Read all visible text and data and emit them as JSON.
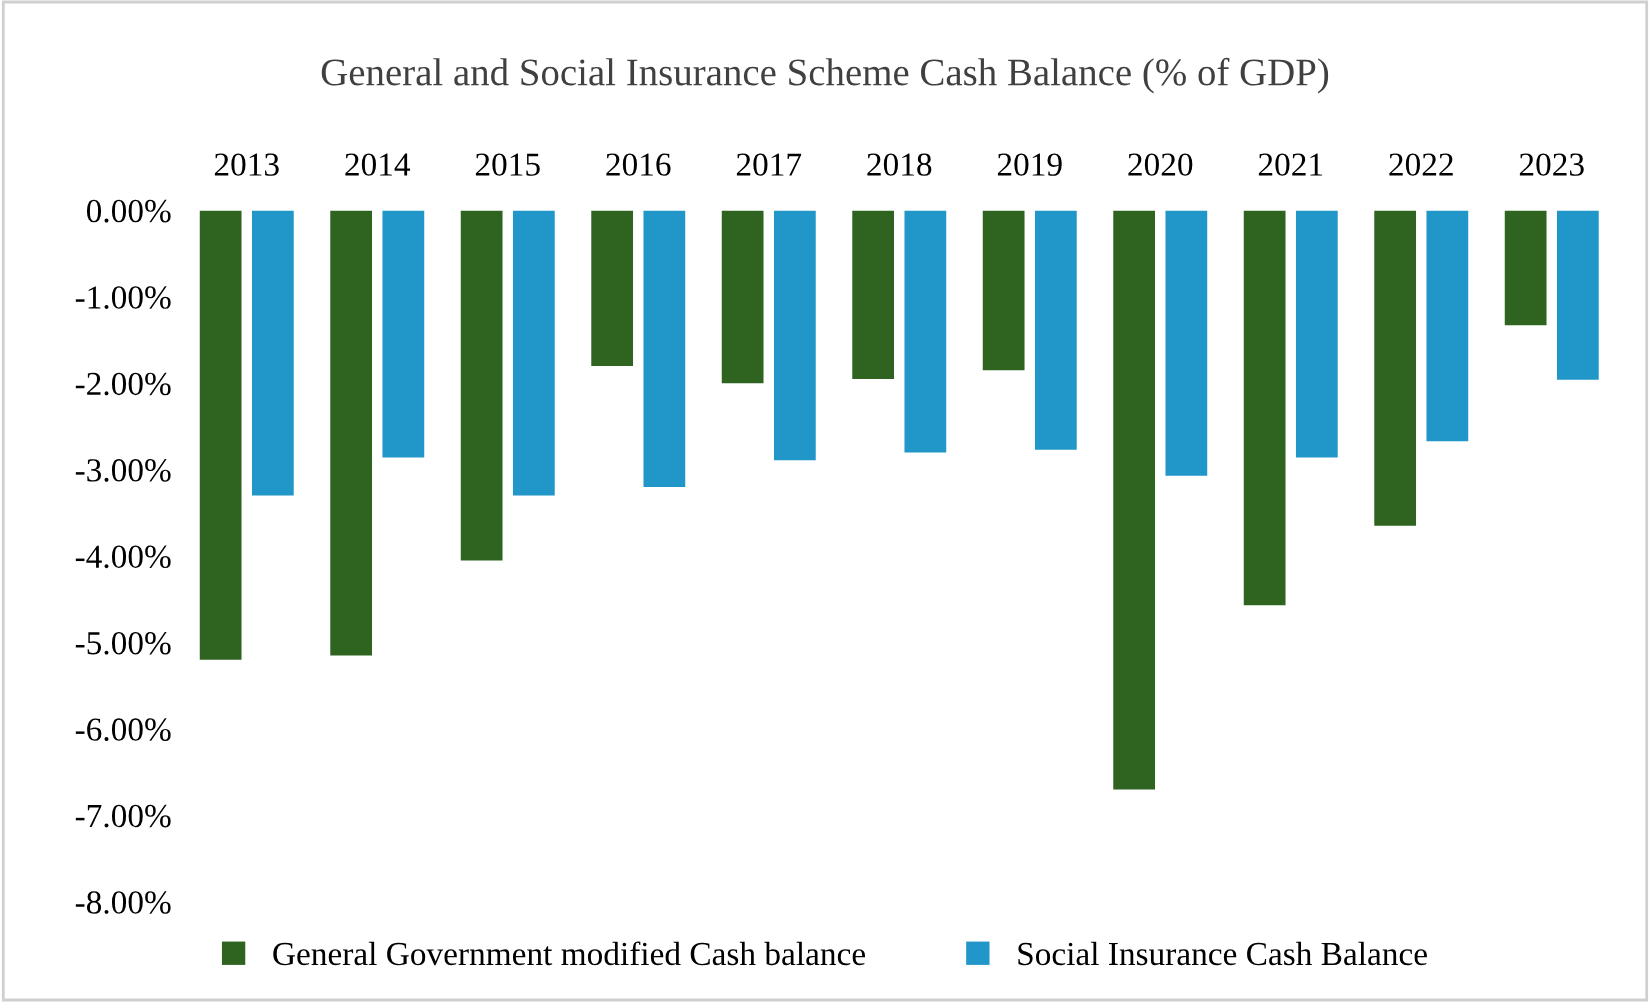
{
  "chart_data": {
    "type": "bar",
    "title": "General and Social Insurance Scheme Cash Balance (% of GDP)",
    "categories": [
      "2013",
      "2014",
      "2015",
      "2016",
      "2017",
      "2018",
      "2019",
      "2020",
      "2021",
      "2022",
      "2023"
    ],
    "series": [
      {
        "name": "General Government modified Cash balance",
        "color": "#2e6420",
        "values": [
          -5.2,
          -5.15,
          -4.05,
          -1.8,
          -2.0,
          -1.95,
          -1.85,
          -6.7,
          -4.57,
          -3.65,
          -1.33
        ]
      },
      {
        "name": "Social Insurance Cash Balance",
        "color": "#2196c8",
        "values": [
          -3.3,
          -2.86,
          -3.3,
          -3.2,
          -2.89,
          -2.8,
          -2.77,
          -3.07,
          -2.86,
          -2.67,
          -1.96
        ]
      }
    ],
    "ylim": [
      -8,
      0
    ],
    "yticks": [
      {
        "value": 0,
        "label": "0.00%"
      },
      {
        "value": -1,
        "label": "-1.00%"
      },
      {
        "value": -2,
        "label": "-2.00%"
      },
      {
        "value": -3,
        "label": "-3.00%"
      },
      {
        "value": -4,
        "label": "-4.00%"
      },
      {
        "value": -5,
        "label": "-5.00%"
      },
      {
        "value": -6,
        "label": "-6.00%"
      },
      {
        "value": -7,
        "label": "-7.00%"
      },
      {
        "value": -8,
        "label": "-8.00%"
      }
    ],
    "grid": false,
    "legend": "bottom"
  }
}
